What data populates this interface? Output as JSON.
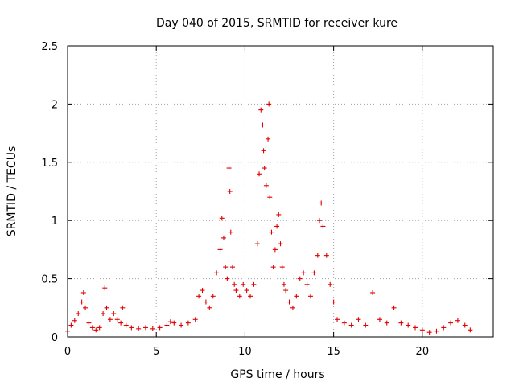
{
  "chart_data": {
    "type": "scatter",
    "title": "Day 040 of 2015, SRMTID for receiver kure",
    "xlabel": "GPS time / hours",
    "ylabel": "SRMTID / TECUs",
    "xlim": [
      0,
      24
    ],
    "ylim": [
      0,
      2.5
    ],
    "x_ticks": [
      0,
      5,
      10,
      15,
      20
    ],
    "y_ticks": [
      0,
      0.5,
      1,
      1.5,
      2,
      2.5
    ],
    "x_tick_labels": [
      "0",
      "5",
      "10",
      "15",
      "20"
    ],
    "y_tick_labels": [
      "0",
      "0.5",
      "1",
      "1.5",
      "2",
      "2.5"
    ],
    "grid": true,
    "marker": "+",
    "color": "#e00000",
    "series": [
      {
        "name": "SRMTID",
        "x": [
          0.0,
          0.2,
          0.4,
          0.6,
          0.8,
          0.9,
          1.0,
          1.2,
          1.4,
          1.6,
          1.8,
          2.0,
          2.1,
          2.2,
          2.4,
          2.6,
          2.8,
          3.0,
          3.1,
          3.3,
          3.6,
          4.0,
          4.4,
          4.8,
          5.2,
          5.6,
          5.8,
          6.0,
          6.4,
          6.8,
          7.2,
          7.4,
          7.6,
          7.8,
          8.0,
          8.2,
          8.4,
          8.6,
          8.7,
          8.8,
          8.9,
          9.0,
          9.1,
          9.15,
          9.2,
          9.3,
          9.4,
          9.5,
          9.7,
          9.9,
          10.1,
          10.3,
          10.5,
          10.7,
          10.8,
          10.9,
          11.0,
          11.05,
          11.1,
          11.2,
          11.3,
          11.35,
          11.4,
          11.5,
          11.6,
          11.7,
          11.8,
          11.9,
          12.0,
          12.1,
          12.2,
          12.3,
          12.5,
          12.7,
          12.9,
          13.1,
          13.3,
          13.5,
          13.7,
          13.9,
          14.1,
          14.2,
          14.3,
          14.4,
          14.6,
          14.8,
          15.0,
          15.2,
          15.6,
          16.0,
          16.4,
          16.8,
          17.2,
          17.6,
          18.0,
          18.4,
          18.8,
          19.2,
          19.6,
          20.0,
          20.4,
          20.8,
          21.2,
          21.6,
          22.0,
          22.4,
          22.7
        ],
        "y": [
          0.05,
          0.1,
          0.14,
          0.2,
          0.3,
          0.38,
          0.25,
          0.12,
          0.08,
          0.06,
          0.08,
          0.2,
          0.42,
          0.25,
          0.15,
          0.2,
          0.15,
          0.12,
          0.25,
          0.1,
          0.08,
          0.07,
          0.08,
          0.07,
          0.08,
          0.1,
          0.13,
          0.12,
          0.1,
          0.12,
          0.15,
          0.35,
          0.4,
          0.3,
          0.25,
          0.35,
          0.55,
          0.75,
          1.02,
          0.85,
          0.6,
          0.5,
          1.45,
          1.25,
          0.9,
          0.6,
          0.45,
          0.4,
          0.35,
          0.45,
          0.4,
          0.35,
          0.45,
          0.8,
          1.4,
          1.95,
          1.82,
          1.6,
          1.45,
          1.3,
          1.7,
          2.0,
          1.2,
          0.9,
          0.6,
          0.75,
          0.95,
          1.05,
          0.8,
          0.6,
          0.45,
          0.4,
          0.3,
          0.25,
          0.35,
          0.5,
          0.55,
          0.45,
          0.35,
          0.55,
          0.7,
          1.0,
          1.15,
          0.95,
          0.7,
          0.45,
          0.3,
          0.15,
          0.12,
          0.1,
          0.15,
          0.1,
          0.38,
          0.15,
          0.12,
          0.25,
          0.12,
          0.1,
          0.08,
          0.06,
          0.04,
          0.05,
          0.08,
          0.12,
          0.14,
          0.1,
          0.06
        ]
      }
    ]
  }
}
